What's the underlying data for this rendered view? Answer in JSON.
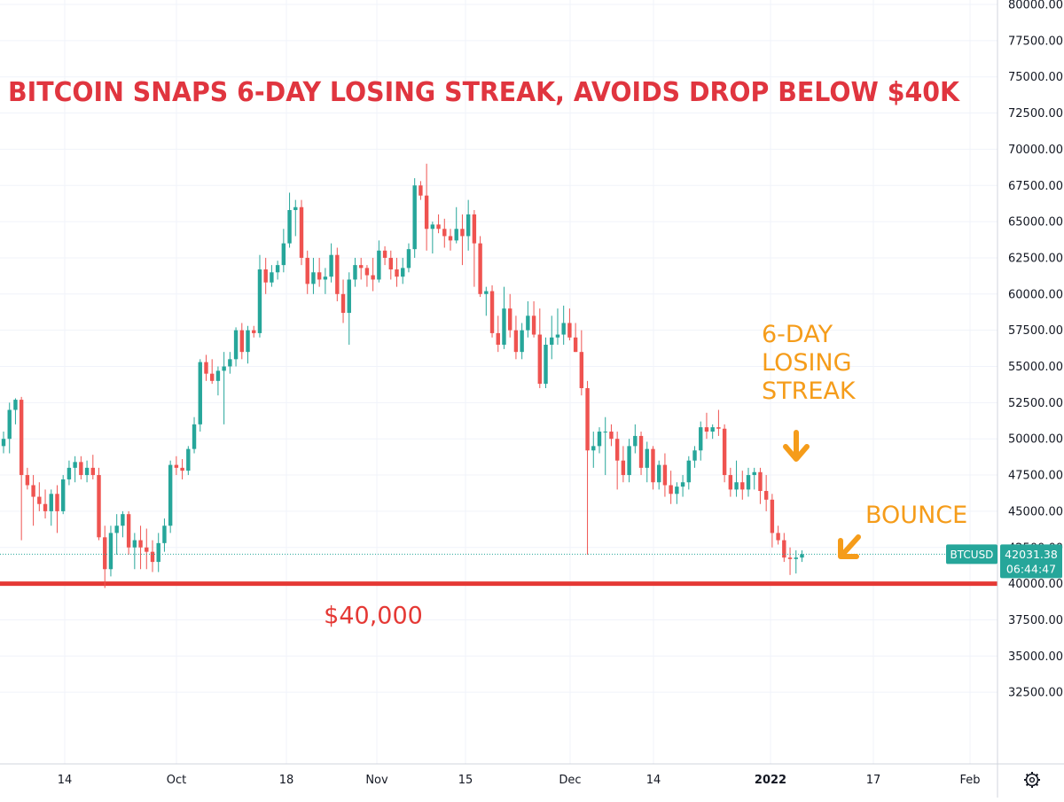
{
  "chart_data": {
    "type": "candlestick",
    "title": "BITCOIN SNAPS 6-DAY LOSING STREAK, AVOIDS DROP BELOW $40K",
    "symbol": "BTCUSD",
    "last_price": "42031.38",
    "countdown": "06:44:47",
    "ylim": [
      30000,
      80000
    ],
    "y_ticks": [
      "80000.00",
      "77500.00",
      "75000.00",
      "72500.00",
      "70000.00",
      "67500.00",
      "65000.00",
      "62500.00",
      "60000.00",
      "57500.00",
      "55000.00",
      "52500.00",
      "50000.00",
      "47500.00",
      "45000.00",
      "42500.00",
      "40000.00",
      "37500.00",
      "35000.00",
      "32500.00"
    ],
    "x_ticks": [
      {
        "label": "14",
        "bold": false
      },
      {
        "label": "Oct",
        "bold": false
      },
      {
        "label": "18",
        "bold": false
      },
      {
        "label": "Nov",
        "bold": false
      },
      {
        "label": "15",
        "bold": false
      },
      {
        "label": "Dec",
        "bold": false
      },
      {
        "label": "14",
        "bold": false
      },
      {
        "label": "2022",
        "bold": true
      },
      {
        "label": "17",
        "bold": false
      },
      {
        "label": "Feb",
        "bold": false
      }
    ],
    "support_level": 40000,
    "support_label": "$40,000",
    "annotations": [
      {
        "lines": [
          "6-DAY",
          "LOSING",
          "STREAK"
        ]
      },
      {
        "lines": [
          "BOUNCE"
        ]
      }
    ],
    "colors": {
      "up": "#26a69a",
      "down": "#ef5350",
      "title": "#e0353f",
      "support": "#e53935",
      "annotation": "#f59c1a",
      "price_tag": "#26a69a"
    },
    "candles": [
      {
        "o": 49500,
        "h": 50500,
        "l": 49000,
        "c": 50000
      },
      {
        "o": 50000,
        "h": 52500,
        "l": 49000,
        "c": 52000
      },
      {
        "o": 52000,
        "h": 52800,
        "l": 51000,
        "c": 52700
      },
      {
        "o": 52700,
        "h": 52900,
        "l": 43000,
        "c": 47500
      },
      {
        "o": 47500,
        "h": 48000,
        "l": 46500,
        "c": 46800
      },
      {
        "o": 46800,
        "h": 47500,
        "l": 44000,
        "c": 46000
      },
      {
        "o": 46000,
        "h": 47000,
        "l": 45000,
        "c": 45500
      },
      {
        "o": 45500,
        "h": 46500,
        "l": 44500,
        "c": 45000
      },
      {
        "o": 45000,
        "h": 46500,
        "l": 44000,
        "c": 46200
      },
      {
        "o": 46200,
        "h": 46800,
        "l": 43500,
        "c": 45000
      },
      {
        "o": 45000,
        "h": 47500,
        "l": 44800,
        "c": 47200
      },
      {
        "o": 47200,
        "h": 48500,
        "l": 46800,
        "c": 48000
      },
      {
        "o": 48000,
        "h": 48800,
        "l": 47000,
        "c": 48400
      },
      {
        "o": 48400,
        "h": 48800,
        "l": 47200,
        "c": 47500
      },
      {
        "o": 47500,
        "h": 48500,
        "l": 47000,
        "c": 48000
      },
      {
        "o": 48000,
        "h": 48900,
        "l": 47200,
        "c": 47500
      },
      {
        "o": 47500,
        "h": 48000,
        "l": 43000,
        "c": 43200
      },
      {
        "o": 43200,
        "h": 44000,
        "l": 39700,
        "c": 41000
      },
      {
        "o": 41000,
        "h": 44000,
        "l": 40500,
        "c": 43500
      },
      {
        "o": 43500,
        "h": 44800,
        "l": 42000,
        "c": 44000
      },
      {
        "o": 44000,
        "h": 45000,
        "l": 43200,
        "c": 44800
      },
      {
        "o": 44800,
        "h": 45000,
        "l": 42000,
        "c": 42500
      },
      {
        "o": 42500,
        "h": 43500,
        "l": 41000,
        "c": 43000
      },
      {
        "o": 43000,
        "h": 44000,
        "l": 41000,
        "c": 42500
      },
      {
        "o": 42500,
        "h": 43800,
        "l": 41000,
        "c": 42200
      },
      {
        "o": 42200,
        "h": 43000,
        "l": 40800,
        "c": 41500
      },
      {
        "o": 41500,
        "h": 43500,
        "l": 40800,
        "c": 42800
      },
      {
        "o": 42800,
        "h": 44500,
        "l": 42200,
        "c": 44000
      },
      {
        "o": 44000,
        "h": 48500,
        "l": 43500,
        "c": 48200
      },
      {
        "o": 48200,
        "h": 48800,
        "l": 47500,
        "c": 48000
      },
      {
        "o": 48000,
        "h": 48600,
        "l": 47200,
        "c": 47800
      },
      {
        "o": 47800,
        "h": 49500,
        "l": 47500,
        "c": 49300
      },
      {
        "o": 49300,
        "h": 51500,
        "l": 49000,
        "c": 51000
      },
      {
        "o": 51000,
        "h": 55500,
        "l": 50500,
        "c": 55300
      },
      {
        "o": 55300,
        "h": 55800,
        "l": 54000,
        "c": 54500
      },
      {
        "o": 54500,
        "h": 55500,
        "l": 53800,
        "c": 54000
      },
      {
        "o": 54000,
        "h": 55000,
        "l": 53000,
        "c": 54700
      },
      {
        "o": 54700,
        "h": 56000,
        "l": 51000,
        "c": 55000
      },
      {
        "o": 55000,
        "h": 56000,
        "l": 54500,
        "c": 55500
      },
      {
        "o": 55500,
        "h": 57700,
        "l": 55000,
        "c": 57500
      },
      {
        "o": 57500,
        "h": 58000,
        "l": 55500,
        "c": 56000
      },
      {
        "o": 56000,
        "h": 57800,
        "l": 55200,
        "c": 57500
      },
      {
        "o": 57500,
        "h": 57800,
        "l": 57000,
        "c": 57300
      },
      {
        "o": 57300,
        "h": 62700,
        "l": 57000,
        "c": 61700
      },
      {
        "o": 61700,
        "h": 62500,
        "l": 60000,
        "c": 60800
      },
      {
        "o": 60800,
        "h": 62000,
        "l": 60500,
        "c": 61500
      },
      {
        "o": 61500,
        "h": 62300,
        "l": 61000,
        "c": 62000
      },
      {
        "o": 62000,
        "h": 64500,
        "l": 61500,
        "c": 63500
      },
      {
        "o": 63500,
        "h": 67000,
        "l": 63200,
        "c": 65800
      },
      {
        "o": 65800,
        "h": 66500,
        "l": 64000,
        "c": 66000
      },
      {
        "o": 66000,
        "h": 66500,
        "l": 62000,
        "c": 62500
      },
      {
        "o": 62500,
        "h": 63000,
        "l": 60000,
        "c": 60700
      },
      {
        "o": 60700,
        "h": 62500,
        "l": 60000,
        "c": 61500
      },
      {
        "o": 61500,
        "h": 62500,
        "l": 60500,
        "c": 61000
      },
      {
        "o": 61000,
        "h": 61800,
        "l": 60000,
        "c": 61200
      },
      {
        "o": 61200,
        "h": 63500,
        "l": 60800,
        "c": 62700
      },
      {
        "o": 62700,
        "h": 63200,
        "l": 59500,
        "c": 60000
      },
      {
        "o": 60000,
        "h": 61000,
        "l": 58000,
        "c": 58700
      },
      {
        "o": 58700,
        "h": 61500,
        "l": 56500,
        "c": 61000
      },
      {
        "o": 61000,
        "h": 62500,
        "l": 60500,
        "c": 62000
      },
      {
        "o": 62000,
        "h": 62500,
        "l": 61000,
        "c": 61800
      },
      {
        "o": 61800,
        "h": 62000,
        "l": 60500,
        "c": 61300
      },
      {
        "o": 61300,
        "h": 62500,
        "l": 60200,
        "c": 61000
      },
      {
        "o": 61000,
        "h": 63700,
        "l": 60800,
        "c": 63000
      },
      {
        "o": 63000,
        "h": 63300,
        "l": 62000,
        "c": 62500
      },
      {
        "o": 62500,
        "h": 63000,
        "l": 61000,
        "c": 61700
      },
      {
        "o": 61700,
        "h": 62500,
        "l": 60500,
        "c": 61200
      },
      {
        "o": 61200,
        "h": 62500,
        "l": 60700,
        "c": 61800
      },
      {
        "o": 61800,
        "h": 63500,
        "l": 61500,
        "c": 63100
      },
      {
        "o": 63100,
        "h": 68000,
        "l": 62500,
        "c": 67500
      },
      {
        "o": 67500,
        "h": 67800,
        "l": 66500,
        "c": 66800
      },
      {
        "o": 66800,
        "h": 69000,
        "l": 63000,
        "c": 64500
      },
      {
        "o": 64500,
        "h": 65000,
        "l": 62800,
        "c": 64800
      },
      {
        "o": 64800,
        "h": 65500,
        "l": 64200,
        "c": 64500
      },
      {
        "o": 64500,
        "h": 65200,
        "l": 63200,
        "c": 64000
      },
      {
        "o": 64000,
        "h": 64500,
        "l": 63000,
        "c": 63700
      },
      {
        "o": 63700,
        "h": 66000,
        "l": 63500,
        "c": 64500
      },
      {
        "o": 64500,
        "h": 65500,
        "l": 62000,
        "c": 64000
      },
      {
        "o": 64000,
        "h": 66500,
        "l": 63000,
        "c": 65500
      },
      {
        "o": 65500,
        "h": 65800,
        "l": 60500,
        "c": 63500
      },
      {
        "o": 63500,
        "h": 64000,
        "l": 59800,
        "c": 60000
      },
      {
        "o": 60000,
        "h": 60500,
        "l": 58500,
        "c": 60200
      },
      {
        "o": 60200,
        "h": 60600,
        "l": 57000,
        "c": 57300
      },
      {
        "o": 57300,
        "h": 58500,
        "l": 56000,
        "c": 56500
      },
      {
        "o": 56500,
        "h": 60500,
        "l": 56200,
        "c": 59000
      },
      {
        "o": 59000,
        "h": 60000,
        "l": 57000,
        "c": 57500
      },
      {
        "o": 57500,
        "h": 58500,
        "l": 55500,
        "c": 56000
      },
      {
        "o": 56000,
        "h": 58000,
        "l": 55500,
        "c": 57500
      },
      {
        "o": 57500,
        "h": 59500,
        "l": 57000,
        "c": 58500
      },
      {
        "o": 58500,
        "h": 59500,
        "l": 57000,
        "c": 57200
      },
      {
        "o": 57200,
        "h": 59000,
        "l": 53500,
        "c": 53800
      },
      {
        "o": 53800,
        "h": 57000,
        "l": 53500,
        "c": 56500
      },
      {
        "o": 56500,
        "h": 58500,
        "l": 55500,
        "c": 57000
      },
      {
        "o": 57000,
        "h": 59000,
        "l": 56500,
        "c": 57200
      },
      {
        "o": 57200,
        "h": 59200,
        "l": 56500,
        "c": 58000
      },
      {
        "o": 58000,
        "h": 59000,
        "l": 56800,
        "c": 57000
      },
      {
        "o": 57000,
        "h": 58000,
        "l": 56000,
        "c": 56000
      },
      {
        "o": 56000,
        "h": 57500,
        "l": 53000,
        "c": 53500
      },
      {
        "o": 53500,
        "h": 54000,
        "l": 42000,
        "c": 49200
      },
      {
        "o": 49200,
        "h": 50500,
        "l": 48000,
        "c": 49500
      },
      {
        "o": 49500,
        "h": 50800,
        "l": 49000,
        "c": 50500
      },
      {
        "o": 50500,
        "h": 51500,
        "l": 47500,
        "c": 50500
      },
      {
        "o": 50500,
        "h": 51000,
        "l": 49500,
        "c": 50000
      },
      {
        "o": 50000,
        "h": 50500,
        "l": 46500,
        "c": 48500
      },
      {
        "o": 48500,
        "h": 49500,
        "l": 47000,
        "c": 47500
      },
      {
        "o": 47500,
        "h": 50000,
        "l": 47000,
        "c": 49500
      },
      {
        "o": 49500,
        "h": 51000,
        "l": 49000,
        "c": 50200
      },
      {
        "o": 50200,
        "h": 50500,
        "l": 47500,
        "c": 48000
      },
      {
        "o": 48000,
        "h": 49800,
        "l": 47000,
        "c": 49300
      },
      {
        "o": 49300,
        "h": 49500,
        "l": 46500,
        "c": 47000
      },
      {
        "o": 47000,
        "h": 48500,
        "l": 46500,
        "c": 48200
      },
      {
        "o": 48200,
        "h": 49000,
        "l": 46000,
        "c": 46800
      },
      {
        "o": 46800,
        "h": 47800,
        "l": 45500,
        "c": 46200
      },
      {
        "o": 46200,
        "h": 47000,
        "l": 45500,
        "c": 46700
      },
      {
        "o": 46700,
        "h": 47500,
        "l": 46000,
        "c": 47000
      },
      {
        "o": 47000,
        "h": 48800,
        "l": 46500,
        "c": 48500
      },
      {
        "o": 48500,
        "h": 49500,
        "l": 48000,
        "c": 49200
      },
      {
        "o": 49200,
        "h": 51200,
        "l": 48500,
        "c": 50800
      },
      {
        "o": 50800,
        "h": 51800,
        "l": 50000,
        "c": 50500
      },
      {
        "o": 50500,
        "h": 51000,
        "l": 50000,
        "c": 50800
      },
      {
        "o": 50800,
        "h": 52000,
        "l": 50200,
        "c": 50700
      },
      {
        "o": 50700,
        "h": 51000,
        "l": 47000,
        "c": 47500
      },
      {
        "o": 47500,
        "h": 48000,
        "l": 46000,
        "c": 46500
      },
      {
        "o": 46500,
        "h": 48500,
        "l": 46000,
        "c": 47000
      },
      {
        "o": 47000,
        "h": 47800,
        "l": 45800,
        "c": 46500
      },
      {
        "o": 46500,
        "h": 48000,
        "l": 46000,
        "c": 47500
      },
      {
        "o": 47500,
        "h": 48000,
        "l": 46500,
        "c": 47700
      },
      {
        "o": 47700,
        "h": 48000,
        "l": 45500,
        "c": 46400
      },
      {
        "o": 46400,
        "h": 47500,
        "l": 45000,
        "c": 45800
      },
      {
        "o": 45800,
        "h": 46200,
        "l": 42500,
        "c": 43500
      },
      {
        "o": 43500,
        "h": 44000,
        "l": 42700,
        "c": 43000
      },
      {
        "o": 43000,
        "h": 43500,
        "l": 41500,
        "c": 41800
      },
      {
        "o": 41800,
        "h": 42500,
        "l": 40600,
        "c": 41700
      },
      {
        "o": 41700,
        "h": 42300,
        "l": 40700,
        "c": 41800
      },
      {
        "o": 41800,
        "h": 42300,
        "l": 41500,
        "c": 42031
      }
    ]
  }
}
